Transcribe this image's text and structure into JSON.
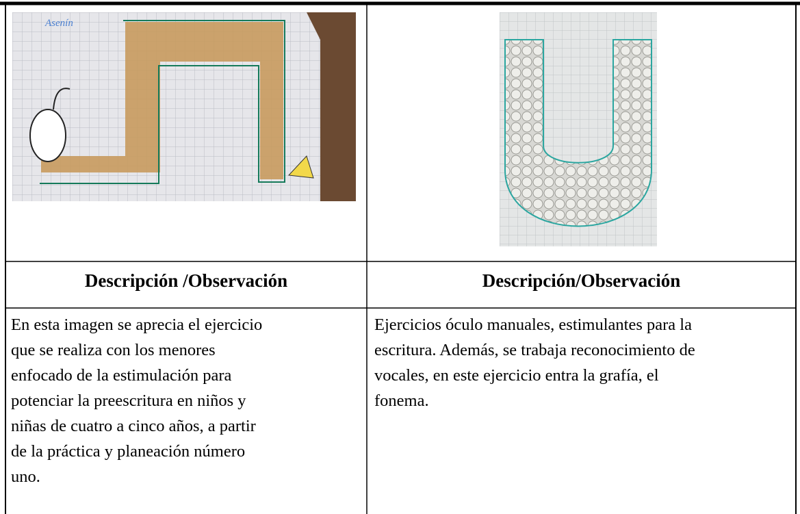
{
  "table": {
    "rows": [
      [
        "Descripción /Observación",
        "Descripción/Observación"
      ],
      [
        [
          "En esta imagen se aprecia el ejercicio",
          "que se realiza con los menores",
          "enfocado de la estimulación para",
          "potenciar la preescritura en niños y",
          "niñas de cuatro a cinco años, a partir",
          "de la práctica y planeación número",
          "uno."
        ],
        [
          "Ejercicios óculo manuales, estimulantes para la",
          "escritura. Además, se trabaja reconocimiento de",
          "vocales, en este ejercicio entra la grafía, el",
          "fonema."
        ]
      ]
    ],
    "photo_caption": "Asenín"
  }
}
